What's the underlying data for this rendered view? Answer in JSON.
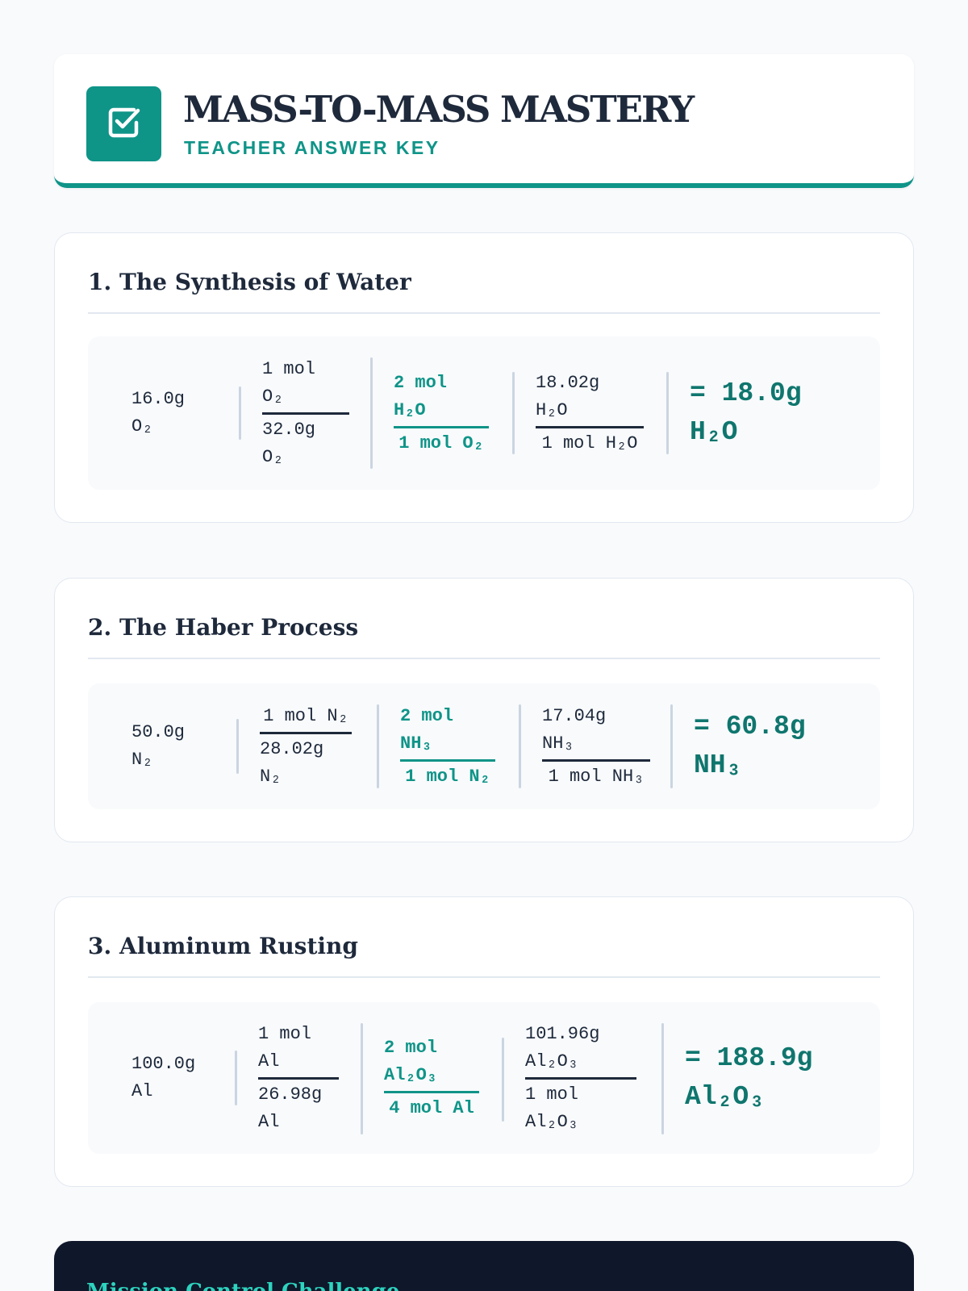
{
  "header": {
    "title": "MASS-TO-MASS MASTERY",
    "subtitle": "TEACHER ANSWER KEY",
    "icon": "checkbox-icon",
    "accent_color": "#0f9488"
  },
  "problems": [
    {
      "title": "1. The Synthesis of Water",
      "given": [
        "16.0g",
        "O₂"
      ],
      "factor1": {
        "numerator": [
          "1 mol",
          "O₂"
        ],
        "denominator": [
          "32.0g",
          "O₂"
        ]
      },
      "ratio": {
        "numerator": [
          "2 mol",
          "H₂O"
        ],
        "denominator": [
          "1 mol O₂"
        ]
      },
      "factor3": {
        "numerator": [
          "18.02g",
          "H₂O"
        ],
        "denominator": [
          "1 mol H₂O"
        ]
      },
      "result": [
        "= 18.0g",
        "H₂O"
      ]
    },
    {
      "title": "2. The Haber Process",
      "given": [
        "50.0g",
        "N₂"
      ],
      "factor1": {
        "numerator": [
          "1 mol N₂"
        ],
        "denominator": [
          "28.02g",
          "N₂"
        ]
      },
      "ratio": {
        "numerator": [
          "2 mol",
          "NH₃"
        ],
        "denominator": [
          "1 mol N₂"
        ]
      },
      "factor3": {
        "numerator": [
          "17.04g",
          "NH₃"
        ],
        "denominator": [
          "1 mol NH₃"
        ]
      },
      "result": [
        "= 60.8g",
        "NH₃"
      ]
    },
    {
      "title": "3. Aluminum Rusting",
      "given": [
        "100.0g",
        "Al"
      ],
      "factor1": {
        "numerator": [
          "1 mol",
          "Al"
        ],
        "denominator": [
          "26.98g",
          "Al"
        ]
      },
      "ratio": {
        "numerator": [
          "2 mol",
          "Al₂O₃"
        ],
        "denominator": [
          "4 mol Al"
        ]
      },
      "factor3": {
        "numerator": [
          "101.96g",
          "Al₂O₃"
        ],
        "denominator": [
          "1 mol",
          "Al₂O₃"
        ]
      },
      "result": [
        "= 188.9g",
        "Al₂O₃"
      ]
    }
  ],
  "challenge": {
    "title": "Mission Control Challenge"
  }
}
